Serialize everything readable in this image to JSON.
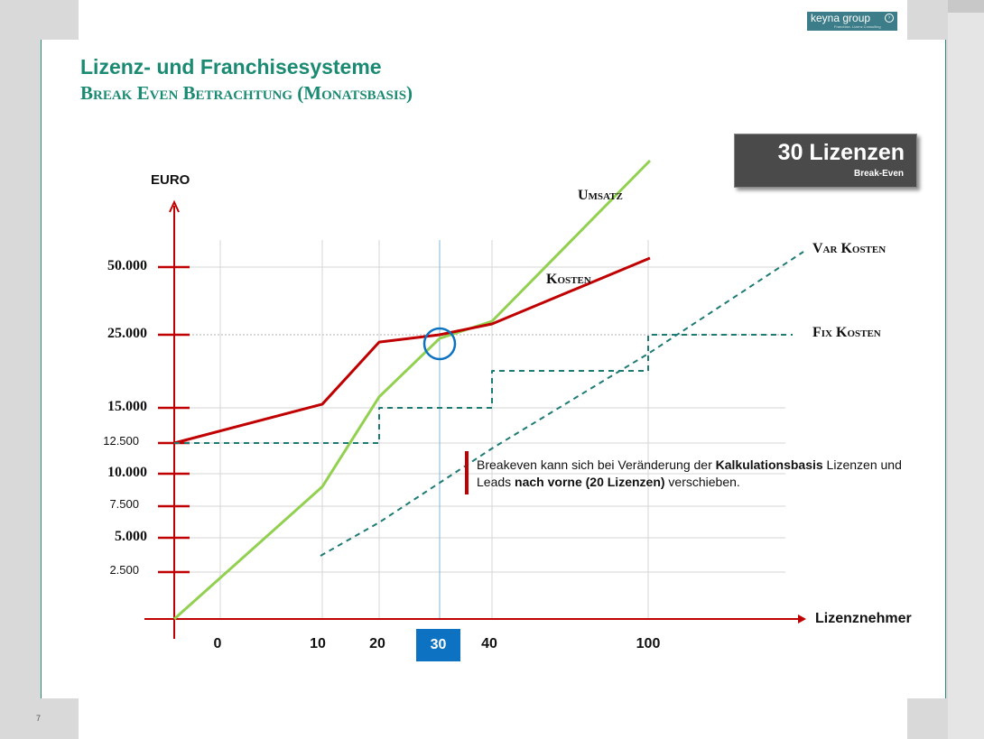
{
  "page_number": "7",
  "logo": {
    "text": "keyna group",
    "tagline": "Franchise- Lizenz Consulting",
    "icon": "arrow-circle-icon"
  },
  "title": "Lizenz- und Franchisesysteme",
  "subtitle": "Break Even Betrachtung (Monatsbasis)",
  "badge": {
    "main": "30 Lizenzen",
    "sub": "Break-Even"
  },
  "note": {
    "parts": [
      {
        "text": "Breakeven kann sich bei Veränderung der ",
        "bold": false
      },
      {
        "text": "Kalkulationsbasis",
        "bold": true
      },
      {
        "text": " Lizenzen und Leads ",
        "bold": false
      },
      {
        "text": "nach vorne (20 Lizenzen)",
        "bold": true
      },
      {
        "text": " verschieben.",
        "bold": false
      }
    ]
  },
  "chart_data": {
    "type": "line",
    "title": "",
    "ylabel": "EURO",
    "xlabel": "Lizenznehmer",
    "x_ticks": [
      "0",
      "10",
      "20",
      "30",
      "40",
      "100"
    ],
    "highlight_x": "30",
    "y_ticks": [
      {
        "label": "2.500",
        "value": 2500,
        "bold": false
      },
      {
        "label": "5.000",
        "value": 5000,
        "bold": true
      },
      {
        "label": "7.500",
        "value": 7500,
        "bold": false
      },
      {
        "label": "10.000",
        "value": 10000,
        "bold": true
      },
      {
        "label": "12.500",
        "value": 12500,
        "bold": false
      },
      {
        "label": "15.000",
        "value": 15000,
        "bold": true
      },
      {
        "label": "25.000",
        "value": 25000,
        "bold": true
      },
      {
        "label": "50.000",
        "value": 50000,
        "bold": true
      }
    ],
    "series": [
      {
        "name": "Umsatz",
        "color": "#92d050",
        "style": "solid",
        "points": [
          [
            "0",
            0
          ],
          [
            "10",
            9000
          ],
          [
            "20",
            16500
          ],
          [
            "30",
            24500
          ],
          [
            "40",
            30000
          ],
          [
            "100",
            70000
          ]
        ]
      },
      {
        "name": "Kosten",
        "color": "#c00000",
        "style": "solid",
        "points": [
          [
            "0",
            12500
          ],
          [
            "10",
            15500
          ],
          [
            "20",
            24000
          ],
          [
            "30",
            25000
          ],
          [
            "40",
            29000
          ],
          [
            "100",
            52000
          ]
        ]
      },
      {
        "name": "Var Kosten",
        "color": "#1e7b74",
        "style": "dashed",
        "points": [
          [
            "10",
            3800
          ],
          [
            "20",
            6000
          ],
          [
            "40",
            12500
          ],
          [
            "100",
            38000
          ]
        ]
      },
      {
        "name": "Fix Kosten",
        "color": "#1e7b74",
        "style": "dashed-step",
        "points": [
          [
            "0",
            12500
          ],
          [
            "20",
            12500
          ],
          [
            "20",
            15000
          ],
          [
            "40",
            15000
          ],
          [
            "40",
            18000
          ],
          [
            "100",
            18000
          ],
          [
            "100",
            25000
          ]
        ]
      }
    ],
    "breakeven": {
      "x": "30",
      "y": 25000
    },
    "grid": true
  },
  "series_labels": {
    "umsatz": "Umsatz",
    "kosten": "Kosten",
    "var_kosten": "Var Kosten",
    "fix_kosten": "Fix Kosten"
  },
  "colors": {
    "accent": "#1a8a72",
    "axis": "#c00000",
    "umsatz": "#92d050",
    "dashed": "#1e7b74",
    "highlight": "#0d72c1"
  }
}
